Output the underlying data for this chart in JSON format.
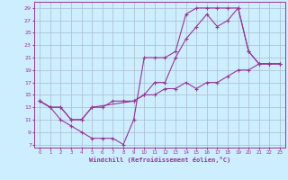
{
  "xlabel": "Windchill (Refroidissement éolien,°C)",
  "bg_color": "#cceeff",
  "line_color": "#993399",
  "grid_color": "#aabbcc",
  "series1": [
    [
      0,
      14
    ],
    [
      1,
      13
    ],
    [
      2,
      11
    ],
    [
      3,
      10
    ],
    [
      4,
      9
    ],
    [
      5,
      8
    ],
    [
      6,
      8
    ],
    [
      7,
      8
    ],
    [
      8,
      7
    ],
    [
      9,
      11
    ],
    [
      10,
      21
    ],
    [
      11,
      21
    ],
    [
      12,
      21
    ],
    [
      13,
      22
    ],
    [
      14,
      28
    ],
    [
      15,
      29
    ],
    [
      16,
      29
    ],
    [
      17,
      29
    ],
    [
      18,
      29
    ],
    [
      19,
      29
    ],
    [
      20,
      22
    ],
    [
      21,
      20
    ],
    [
      22,
      20
    ],
    [
      23,
      20
    ]
  ],
  "series2": [
    [
      0,
      14
    ],
    [
      1,
      13
    ],
    [
      2,
      13
    ],
    [
      3,
      11
    ],
    [
      4,
      11
    ],
    [
      5,
      13
    ],
    [
      6,
      13
    ],
    [
      7,
      14
    ],
    [
      8,
      14
    ],
    [
      9,
      14
    ],
    [
      10,
      15
    ],
    [
      11,
      15
    ],
    [
      12,
      16
    ],
    [
      13,
      16
    ],
    [
      14,
      17
    ],
    [
      15,
      16
    ],
    [
      16,
      17
    ],
    [
      17,
      17
    ],
    [
      18,
      18
    ],
    [
      19,
      19
    ],
    [
      20,
      19
    ],
    [
      21,
      20
    ],
    [
      22,
      20
    ],
    [
      23,
      20
    ]
  ],
  "series3": [
    [
      0,
      14
    ],
    [
      1,
      13
    ],
    [
      2,
      13
    ],
    [
      3,
      11
    ],
    [
      4,
      11
    ],
    [
      5,
      13
    ],
    [
      9,
      14
    ],
    [
      10,
      15
    ],
    [
      11,
      17
    ],
    [
      12,
      17
    ],
    [
      13,
      21
    ],
    [
      14,
      24
    ],
    [
      15,
      26
    ],
    [
      16,
      28
    ],
    [
      17,
      26
    ],
    [
      18,
      27
    ],
    [
      19,
      29
    ],
    [
      20,
      22
    ],
    [
      21,
      20
    ],
    [
      22,
      20
    ],
    [
      23,
      20
    ]
  ],
  "xlim": [
    -0.5,
    23.5
  ],
  "ylim": [
    6.5,
    30
  ],
  "xticks": [
    0,
    1,
    2,
    3,
    4,
    5,
    6,
    7,
    8,
    9,
    10,
    11,
    12,
    13,
    14,
    15,
    16,
    17,
    18,
    19,
    20,
    21,
    22,
    23
  ],
  "yticks": [
    7,
    9,
    11,
    13,
    15,
    17,
    19,
    21,
    23,
    25,
    27,
    29
  ],
  "ytick_labels": [
    "7",
    "9",
    "11",
    "13",
    "15",
    "17",
    "19",
    "21",
    "23",
    "25",
    "27",
    "29"
  ]
}
